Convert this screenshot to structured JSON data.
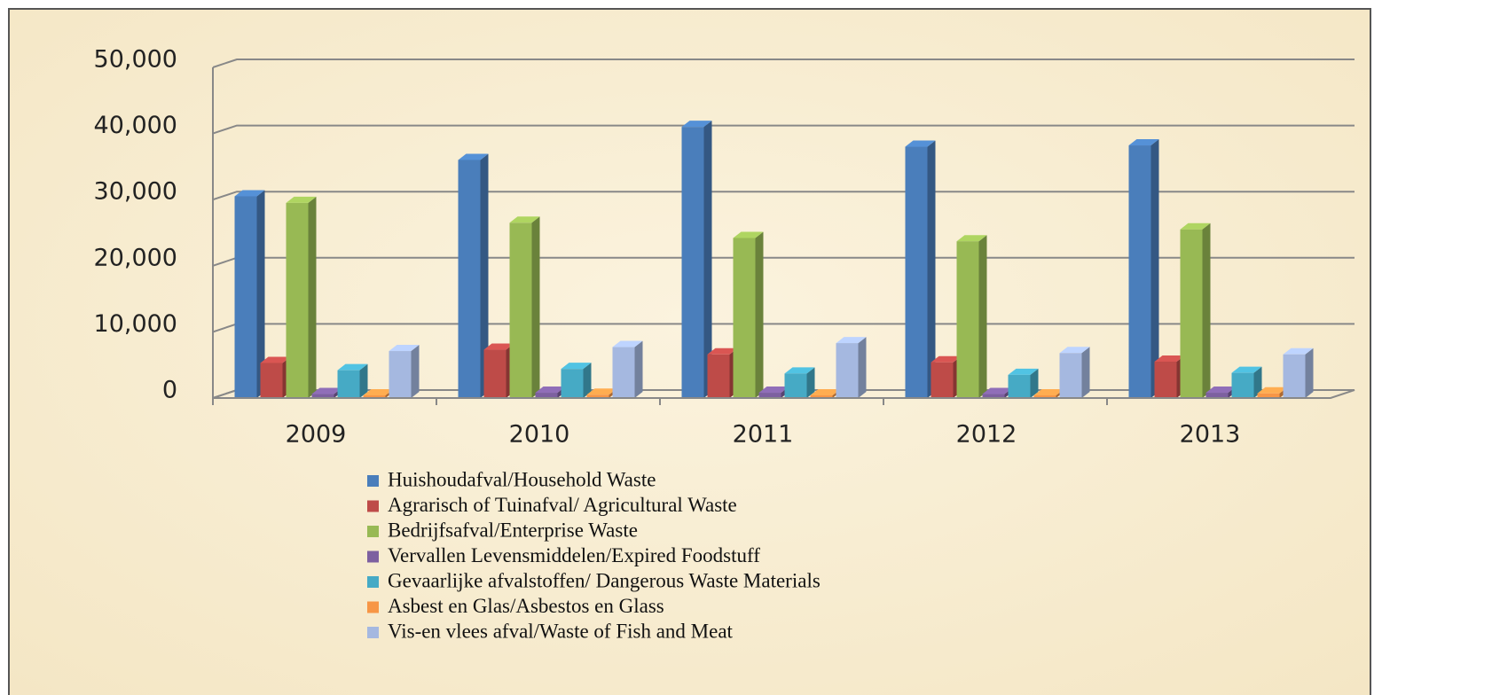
{
  "chart_data": {
    "type": "bar3d",
    "categories": [
      "2009",
      "2010",
      "2011",
      "2012",
      "2013"
    ],
    "series": [
      {
        "name": "Huishoudafval/Household Waste",
        "color": "#4a7ebb",
        "values": [
          30500,
          36000,
          41000,
          38000,
          38200
        ]
      },
      {
        "name": "Agrarisch of Tuinafval/ Agricultural Waste",
        "color": "#be4b48",
        "values": [
          5300,
          7300,
          6600,
          5400,
          5500
        ]
      },
      {
        "name": "Bedrijfsafval/Enterprise Waste",
        "color": "#98b954",
        "values": [
          29500,
          26500,
          24200,
          23700,
          25500
        ]
      },
      {
        "name": "Vervallen Levensmiddelen/Expired Foodstuff",
        "color": "#7d60a0",
        "values": [
          600,
          800,
          800,
          600,
          800
        ]
      },
      {
        "name": "Gevaarlijke afvalstoffen/ Dangerous Waste Materials",
        "color": "#46aac5",
        "values": [
          4200,
          4400,
          3700,
          3500,
          3800
        ]
      },
      {
        "name": "Asbest en Glas/Asbestos en Glass",
        "color": "#f79646",
        "values": [
          400,
          500,
          400,
          400,
          700
        ]
      },
      {
        "name": "Vis-en vlees afval/Waste of Fish and Meat",
        "color": "#a5b8e0",
        "values": [
          7100,
          7700,
          8300,
          6800,
          6600
        ]
      }
    ],
    "ylim": [
      0,
      50000
    ],
    "yticks": [
      0,
      {
        "value": 10000,
        "label": "10,000"
      },
      {
        "value": 20000,
        "label": "20,000"
      },
      {
        "value": 30000,
        "label": "30,000"
      },
      {
        "value": 40000,
        "label": "40,000"
      },
      {
        "value": 50000,
        "label": "50,000"
      }
    ],
    "grid": true,
    "legend": "bottom"
  }
}
